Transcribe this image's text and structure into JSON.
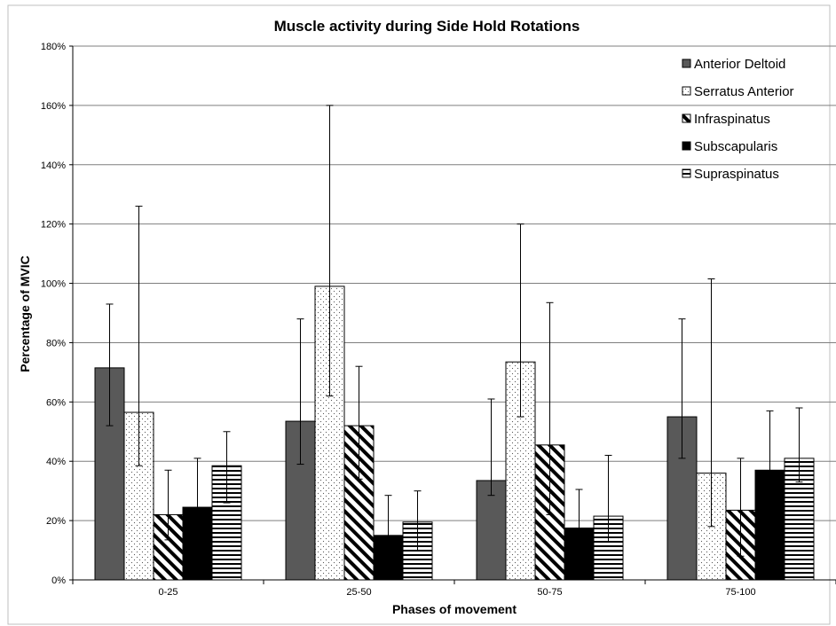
{
  "chart_data": {
    "type": "bar",
    "title": "Muscle activity during Side Hold Rotations",
    "xlabel": "Phases of movement",
    "ylabel": "Percentage of MVIC",
    "categories": [
      "0-25",
      "25-50",
      "50-75",
      "75-100"
    ],
    "ylim": [
      0,
      180
    ],
    "yticks": [
      0,
      20,
      40,
      60,
      80,
      100,
      120,
      140,
      160,
      180
    ],
    "ytick_labels": [
      "0%",
      "20%",
      "40%",
      "60%",
      "80%",
      "100%",
      "120%",
      "140%",
      "160%",
      "180%"
    ],
    "grid": true,
    "legend_position": "top-right",
    "error_bars": true,
    "series": [
      {
        "name": "Anterior Deltoid",
        "pattern": "solid-gray",
        "color": "#595959",
        "values": [
          71.5,
          53.5,
          33.5,
          55
        ],
        "err_low": [
          52,
          39,
          28.5,
          41
        ],
        "err_high": [
          93,
          88,
          61,
          88
        ]
      },
      {
        "name": "Serratus Anterior",
        "pattern": "dotted",
        "color": "#ffffff",
        "values": [
          56.5,
          99,
          73.5,
          36
        ],
        "err_low": [
          38.5,
          62,
          55,
          18
        ],
        "err_high": [
          126,
          160,
          120,
          101.5
        ]
      },
      {
        "name": "Infraspinatus",
        "pattern": "diagonal-hatch",
        "color": "#ffffff",
        "values": [
          22,
          52,
          45.5,
          23.5
        ],
        "err_low": [
          13.5,
          34,
          22,
          8
        ],
        "err_high": [
          37,
          72,
          93.5,
          41
        ]
      },
      {
        "name": "Subscapularis",
        "pattern": "solid-black",
        "color": "#000000",
        "values": [
          24.5,
          15,
          17.5,
          37
        ],
        "err_low": [
          13.5,
          10,
          13,
          26
        ],
        "err_high": [
          41,
          28.5,
          30.5,
          57
        ]
      },
      {
        "name": "Supraspinatus",
        "pattern": "horizontal-hatch",
        "color": "#ffffff",
        "values": [
          38.5,
          19.5,
          21.5,
          41
        ],
        "err_low": [
          26,
          10,
          13,
          33
        ],
        "err_high": [
          50,
          30,
          42,
          58
        ]
      }
    ]
  }
}
